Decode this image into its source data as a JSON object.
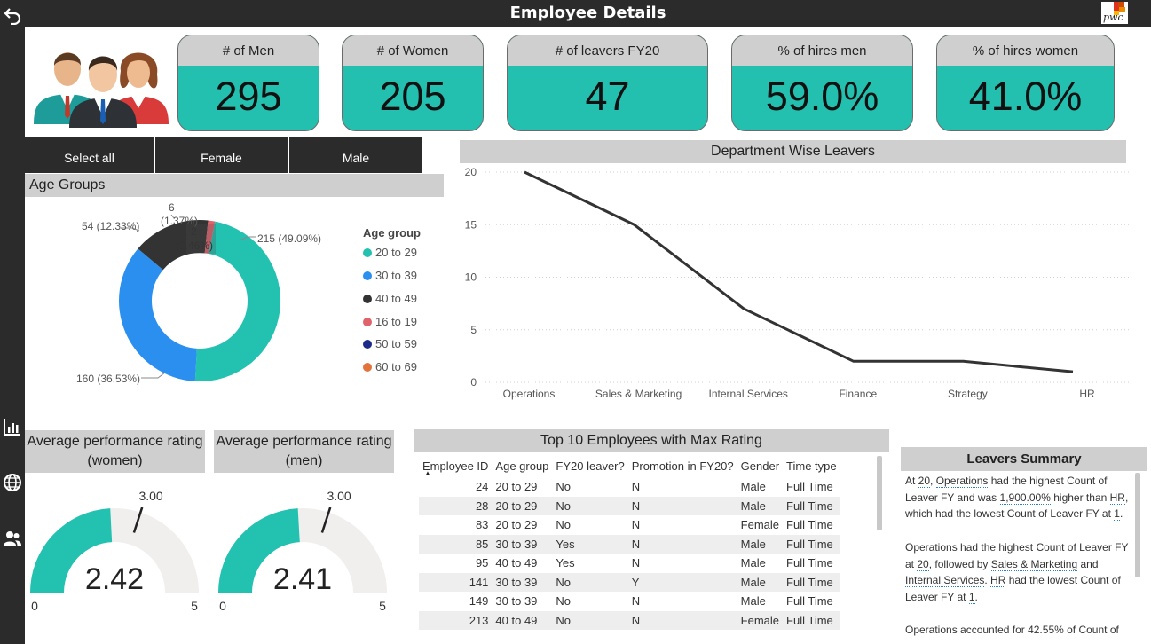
{
  "header": {
    "title": "Employee Details"
  },
  "sidebar": {
    "icons": [
      "back-arrow-icon",
      "bar-chart-icon",
      "globe-icon",
      "people-icon"
    ]
  },
  "kpis": [
    {
      "label": "# of Men",
      "value": "295"
    },
    {
      "label": "# of Women",
      "value": "205"
    },
    {
      "label": "# of leavers FY20",
      "value": "47"
    },
    {
      "label": "% of hires men",
      "value": "59.0%"
    },
    {
      "label": "% of hires women",
      "value": "41.0%"
    }
  ],
  "slicer": {
    "buttons": [
      "Select all",
      "Female",
      "Male"
    ]
  },
  "age_groups": {
    "title": "Age Groups",
    "legend_title": "Age group",
    "slice_labels": [
      "215 (49.09%)",
      "160 (36.53%)",
      "54 (12.33%)",
      "6",
      "(1.37%)",
      "2",
      "(0.46%)"
    ],
    "legend": [
      {
        "label": "20 to 29",
        "color": "#22c1b0"
      },
      {
        "label": "30 to 39",
        "color": "#2b8ff0"
      },
      {
        "label": "40 to 49",
        "color": "#333333"
      },
      {
        "label": "16 to 19",
        "color": "#e0636c"
      },
      {
        "label": "50 to 59",
        "color": "#1c2a8a"
      },
      {
        "label": "60 to 69",
        "color": "#e2733c"
      }
    ]
  },
  "chart_data": {
    "type": "line",
    "title": "Department Wise Leavers",
    "categories": [
      "Operations",
      "Sales & Marketing",
      "Internal Services",
      "Finance",
      "Strategy",
      "HR"
    ],
    "values": [
      20,
      15,
      7,
      2,
      2,
      1
    ],
    "yticks": [
      "0",
      "5",
      "10",
      "15",
      "20"
    ],
    "ylim": [
      0,
      20
    ],
    "grid": true,
    "color": "#333333"
  },
  "gauges": [
    {
      "title": "Average performance rating (women)",
      "value": "2.42",
      "value_num": 2.42,
      "target": "3.00",
      "target_num": 3.0,
      "min": "0",
      "max": "5",
      "max_num": 5
    },
    {
      "title": "Average performance rating (men)",
      "value": "2.41",
      "value_num": 2.41,
      "target": "3.00",
      "target_num": 3.0,
      "min": "0",
      "max": "5",
      "max_num": 5
    }
  ],
  "top_employees": {
    "title": "Top 10 Employees with Max Rating",
    "columns": [
      "Employee ID",
      "Age group",
      "FY20 leaver?",
      "Promotion in FY20?",
      "Gender",
      "Time type"
    ],
    "rows": [
      [
        "24",
        "20 to 29",
        "No",
        "N",
        "Male",
        "Full Time"
      ],
      [
        "28",
        "20 to 29",
        "No",
        "N",
        "Male",
        "Full Time"
      ],
      [
        "83",
        "20 to 29",
        "No",
        "N",
        "Female",
        "Full Time"
      ],
      [
        "85",
        "30 to 39",
        "Yes",
        "N",
        "Male",
        "Full Time"
      ],
      [
        "95",
        "40 to 49",
        "Yes",
        "N",
        "Male",
        "Full Time"
      ],
      [
        "141",
        "30 to 39",
        "No",
        "Y",
        "Male",
        "Full Time"
      ],
      [
        "149",
        "30 to 39",
        "No",
        "N",
        "Male",
        "Full Time"
      ],
      [
        "213",
        "40 to 49",
        "No",
        "N",
        "Female",
        "Full Time"
      ]
    ]
  },
  "summary": {
    "title": "Leavers Summary",
    "p1": {
      "a": "At ",
      "b": "20",
      "c": ", ",
      "d": "Operations",
      "e": " had the highest Count of Leaver FY and was ",
      "f": "1,900.00%",
      "g": " higher than ",
      "h": "HR",
      "i": ", which had the lowest Count of Leaver FY at ",
      "j": "1",
      "k": "."
    },
    "p2": {
      "a": "Operations",
      "b": " had the highest Count of Leaver FY at ",
      "c": "20",
      "d": ", followed by ",
      "e": "Sales & Marketing",
      "f": " and ",
      "g": "Internal Services",
      "h": ". ",
      "i": "HR",
      "j": " had the lowest Count of Leaver FY at ",
      "k": "1",
      "l": "."
    },
    "p3": {
      "a": "Operations accounted for 42.55% of Count of"
    }
  }
}
